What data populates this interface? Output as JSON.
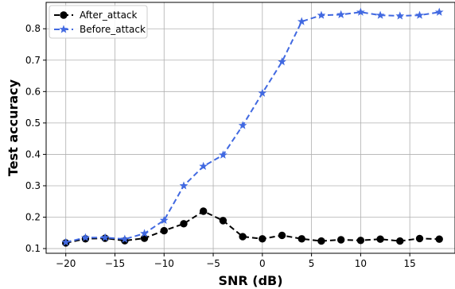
{
  "chart_data": {
    "type": "line",
    "xlabel": "SNR (dB)",
    "ylabel": "Test accuracy",
    "xlim": [
      -22,
      19.6
    ],
    "ylim": [
      0.085,
      0.884
    ],
    "xticks": [
      -20,
      -15,
      -10,
      -5,
      0,
      5,
      10,
      15
    ],
    "xtick_labels": [
      "−20",
      "−15",
      "−10",
      "−5",
      "0",
      "5",
      "10",
      "15"
    ],
    "yticks": [
      0.1,
      0.2,
      0.3,
      0.4,
      0.5,
      0.6,
      0.7,
      0.8
    ],
    "ytick_labels": [
      "0.1",
      "0.2",
      "0.3",
      "0.4",
      "0.5",
      "0.6",
      "0.7",
      "0.8"
    ],
    "grid": true,
    "legend_position": "top-left",
    "x": [
      -20,
      -18,
      -16,
      -14,
      -12,
      -10,
      -8,
      -6,
      -4,
      -2,
      0,
      2,
      4,
      6,
      8,
      10,
      12,
      14,
      16,
      18
    ],
    "series": [
      {
        "name": "After_attack",
        "color": "#000000",
        "marker": "circle",
        "values": [
          0.118,
          0.131,
          0.133,
          0.125,
          0.133,
          0.157,
          0.179,
          0.219,
          0.189,
          0.138,
          0.131,
          0.142,
          0.131,
          0.124,
          0.128,
          0.126,
          0.13,
          0.124,
          0.132,
          0.13
        ]
      },
      {
        "name": "Before_attack",
        "color": "#4169e1",
        "marker": "star",
        "values": [
          0.12,
          0.135,
          0.135,
          0.13,
          0.148,
          0.19,
          0.3,
          0.362,
          0.398,
          0.492,
          0.595,
          0.695,
          0.823,
          0.843,
          0.845,
          0.853,
          0.843,
          0.841,
          0.843,
          0.853
        ]
      }
    ]
  }
}
